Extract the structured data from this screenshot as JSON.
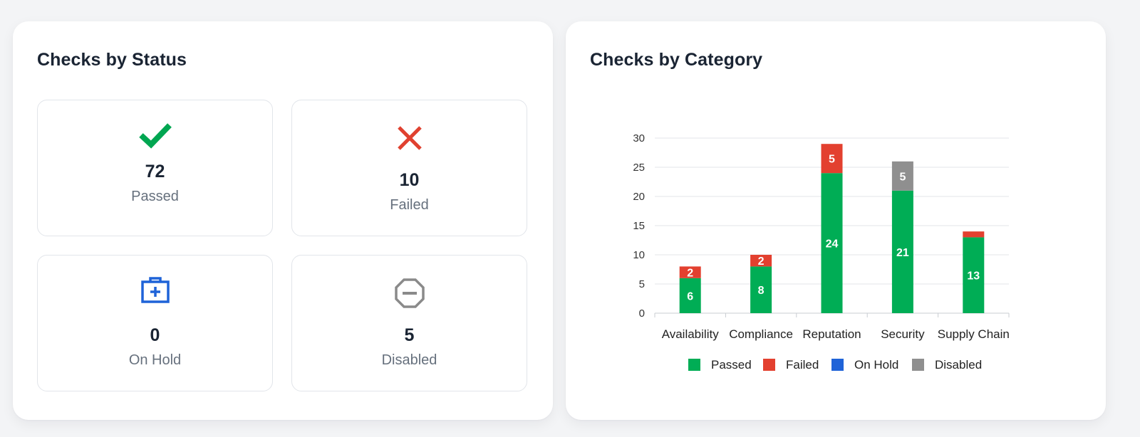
{
  "status_panel": {
    "title": "Checks by Status",
    "cards": [
      {
        "value": "72",
        "label": "Passed",
        "icon": "check-icon",
        "color": "#00a651"
      },
      {
        "value": "10",
        "label": "Failed",
        "icon": "x-icon",
        "color": "#e04130"
      },
      {
        "value": "0",
        "label": "On Hold",
        "icon": "briefcase-plus-icon",
        "color": "#1f63d8"
      },
      {
        "value": "5",
        "label": "Disabled",
        "icon": "octagon-minus-icon",
        "color": "#8a8a8a"
      }
    ]
  },
  "category_panel": {
    "title": "Checks by Category"
  },
  "chart_data": {
    "type": "bar",
    "stacked": true,
    "categories": [
      "Availability",
      "Compliance",
      "Reputation",
      "Security",
      "Supply Chain"
    ],
    "series": [
      {
        "name": "Passed",
        "color": "#00ad55",
        "values": [
          6,
          8,
          24,
          21,
          13
        ]
      },
      {
        "name": "Failed",
        "color": "#e3402f",
        "values": [
          2,
          2,
          5,
          0,
          1
        ]
      },
      {
        "name": "On Hold",
        "color": "#1f63d8",
        "values": [
          0,
          0,
          0,
          0,
          0
        ]
      },
      {
        "name": "Disabled",
        "color": "#8f8f8f",
        "values": [
          0,
          0,
          0,
          5,
          0
        ]
      }
    ],
    "yticks": [
      "0",
      "5",
      "10",
      "15",
      "20",
      "25",
      "30"
    ],
    "ylim": [
      0,
      30
    ],
    "grid": true,
    "legend_position": "bottom",
    "value_label_color": "#ffffff"
  }
}
